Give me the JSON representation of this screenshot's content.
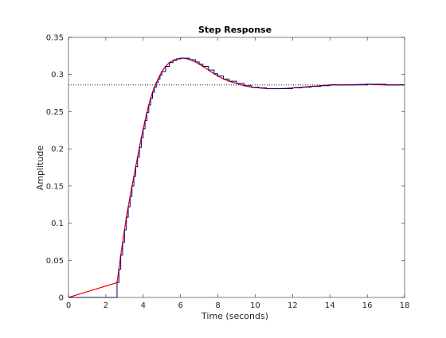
{
  "chart_data": {
    "type": "line",
    "title": "Step Response",
    "xlabel": "Time (seconds)",
    "ylabel": "Amplitude",
    "xlim": [
      0,
      18
    ],
    "ylim": [
      0,
      0.35
    ],
    "xticks": [
      0,
      2,
      4,
      6,
      8,
      10,
      12,
      14,
      16,
      18
    ],
    "yticks": [
      0,
      0.05,
      0.1,
      0.15,
      0.2,
      0.25,
      0.3,
      0.35
    ],
    "xtick_labels": [
      "0",
      "2",
      "4",
      "6",
      "8",
      "10",
      "12",
      "14",
      "16",
      "18"
    ],
    "ytick_labels": [
      "0",
      "0.05",
      "0.1",
      "0.15",
      "0.2",
      "0.25",
      "0.3",
      "0.35"
    ],
    "grid": false,
    "steady_state": 0.286,
    "series": [
      {
        "color": "#ff0000",
        "style": "solid",
        "x": [
          0,
          2.6,
          2.7,
          2.8,
          2.9,
          3.0,
          3.1,
          3.2,
          3.3,
          3.4,
          3.5,
          3.6,
          3.7,
          3.8,
          3.9,
          4.0,
          4.1,
          4.2,
          4.3,
          4.4,
          4.5,
          4.6,
          4.7,
          4.8,
          4.9,
          5.0,
          5.2,
          5.4,
          5.6,
          5.8,
          6.0,
          6.2,
          6.5,
          6.8,
          7.0,
          7.2,
          7.5,
          7.8,
          8.0,
          8.3,
          8.6,
          9.0,
          9.4,
          9.8,
          10.2,
          10.6,
          11.0,
          11.4,
          12.0,
          12.5,
          13.0,
          13.5,
          14.0,
          15.0,
          16.0,
          17.0,
          18.0
        ],
        "y": [
          0,
          0.02,
          0.038,
          0.057,
          0.074,
          0.091,
          0.108,
          0.122,
          0.136,
          0.15,
          0.163,
          0.176,
          0.189,
          0.202,
          0.215,
          0.227,
          0.238,
          0.249,
          0.259,
          0.268,
          0.276,
          0.283,
          0.289,
          0.294,
          0.299,
          0.304,
          0.311,
          0.316,
          0.319,
          0.321,
          0.322,
          0.322,
          0.32,
          0.317,
          0.314,
          0.311,
          0.306,
          0.301,
          0.298,
          0.294,
          0.291,
          0.288,
          0.285,
          0.283,
          0.282,
          0.281,
          0.281,
          0.281,
          0.282,
          0.283,
          0.284,
          0.285,
          0.286,
          0.286,
          0.287,
          0.286,
          0.286
        ]
      },
      {
        "color": "#000080",
        "style": "stairs",
        "x": [
          0,
          2.6,
          2.7,
          2.8,
          2.9,
          3.0,
          3.1,
          3.2,
          3.3,
          3.4,
          3.5,
          3.6,
          3.7,
          3.8,
          3.9,
          4.0,
          4.1,
          4.2,
          4.3,
          4.4,
          4.5,
          4.6,
          4.7,
          4.8,
          4.9,
          5.0,
          5.2,
          5.4,
          5.6,
          5.8,
          6.0,
          6.2,
          6.5,
          6.8,
          7.0,
          7.2,
          7.5,
          7.8,
          8.0,
          8.3,
          8.6,
          9.0,
          9.4,
          9.8,
          10.2,
          10.6,
          11.0,
          11.4,
          12.0,
          12.5,
          13.0,
          13.5,
          14.0,
          15.0,
          16.0,
          17.0,
          18.0
        ],
        "y": [
          0,
          0.02,
          0.038,
          0.057,
          0.074,
          0.091,
          0.108,
          0.122,
          0.136,
          0.15,
          0.163,
          0.176,
          0.189,
          0.202,
          0.215,
          0.227,
          0.238,
          0.249,
          0.259,
          0.268,
          0.276,
          0.283,
          0.289,
          0.294,
          0.299,
          0.304,
          0.311,
          0.316,
          0.319,
          0.321,
          0.322,
          0.322,
          0.32,
          0.317,
          0.314,
          0.311,
          0.306,
          0.301,
          0.298,
          0.294,
          0.291,
          0.288,
          0.285,
          0.283,
          0.282,
          0.281,
          0.281,
          0.281,
          0.282,
          0.283,
          0.284,
          0.285,
          0.286,
          0.286,
          0.287,
          0.286,
          0.286
        ]
      }
    ]
  }
}
